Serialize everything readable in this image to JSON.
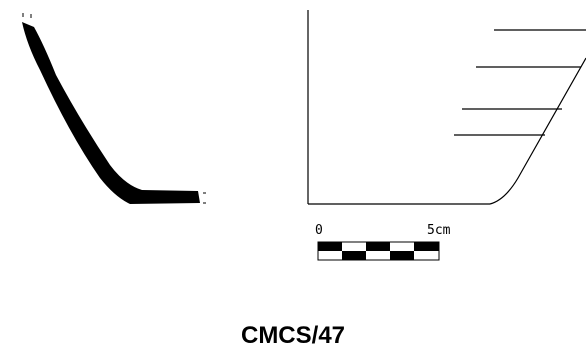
{
  "figure": {
    "caption": "CMCS/47",
    "ink_color": "#000000",
    "background_color": "#ffffff"
  },
  "scale_bar": {
    "start_label": "0",
    "end_label": "5cm"
  }
}
